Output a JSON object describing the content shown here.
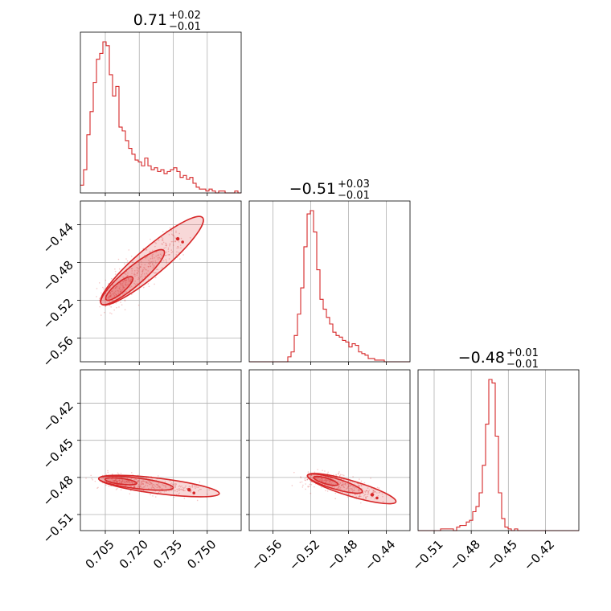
{
  "chart_data": {
    "type": "corner",
    "color": "#d62728",
    "grid": true,
    "params": [
      {
        "key": "p0",
        "range": [
          0.694,
          0.765
        ],
        "ticks": [
          0.705,
          0.72,
          0.735,
          0.75
        ],
        "tick_labels": [
          "0.705",
          "0.720",
          "0.735",
          "0.750"
        ]
      },
      {
        "key": "p1",
        "range": [
          -0.585,
          -0.415
        ],
        "ticks": [
          -0.56,
          -0.52,
          -0.48,
          -0.44
        ],
        "tick_labels": [
          "−0.56",
          "−0.52",
          "−0.48",
          "−0.44"
        ]
      },
      {
        "key": "p2",
        "range": [
          -0.523,
          -0.393
        ],
        "ticks": [
          -0.51,
          -0.48,
          -0.45,
          -0.42
        ],
        "tick_labels": [
          "−0.51",
          "−0.48",
          "−0.45",
          "−0.42"
        ]
      }
    ],
    "titles": [
      {
        "value": "0.71",
        "plus": "+0.02",
        "minus": "−0.01"
      },
      {
        "value": "−0.51",
        "plus": "+0.03",
        "minus": "−0.01"
      },
      {
        "value": "−0.48",
        "plus": "+0.01",
        "minus": "−0.01"
      }
    ],
    "histograms": [
      {
        "param": 0,
        "bin_start": 0.694,
        "bin_width": 0.00142,
        "counts": [
          4,
          12,
          30,
          42,
          57,
          69,
          72,
          78,
          76,
          61,
          50,
          55,
          34,
          32,
          27,
          23,
          20,
          17,
          16,
          14,
          18,
          14,
          12,
          13,
          11,
          12,
          10,
          11,
          12,
          13,
          11,
          8,
          9,
          7,
          8,
          5,
          3,
          2,
          2,
          1,
          2,
          1,
          0,
          1,
          1,
          0,
          0,
          0,
          1,
          0
        ]
      },
      {
        "param": 1,
        "bin_start": -0.585,
        "bin_width": 0.0034,
        "counts": [
          0,
          0,
          0,
          0,
          0,
          0,
          0,
          0,
          0,
          0,
          0,
          0,
          3,
          6,
          16,
          29,
          45,
          70,
          90,
          92,
          79,
          56,
          38,
          32,
          27,
          23,
          18,
          16,
          15,
          13,
          12,
          9,
          11,
          10,
          6,
          5,
          4,
          2,
          2,
          1,
          1,
          1,
          0,
          0,
          0,
          0,
          0,
          0,
          0,
          0
        ]
      },
      {
        "param": 2,
        "bin_start": -0.523,
        "bin_width": 0.0026,
        "counts": [
          0,
          0,
          0,
          0,
          0,
          0,
          0,
          1,
          1,
          1,
          1,
          0,
          2,
          3,
          3,
          5,
          6,
          11,
          14,
          22,
          38,
          62,
          88,
          86,
          55,
          22,
          7,
          2,
          1,
          0,
          1,
          0,
          0,
          0,
          0,
          0,
          0,
          0,
          0,
          0,
          0,
          0,
          0,
          0,
          0,
          0,
          0,
          0,
          0,
          0
        ]
      }
    ],
    "contours": [
      {
        "x": 0,
        "y": 1,
        "center": [
          0.707,
          -0.516
        ],
        "sigma": [
          0.0035,
          0.009
        ],
        "slope": 3.2,
        "tail_to": [
          0.737,
          -0.455
        ]
      },
      {
        "x": 0,
        "y": 2,
        "center": [
          0.707,
          -0.482
        ],
        "sigma": [
          0.0055,
          0.0035
        ],
        "slope": -0.25,
        "tail_to": [
          0.742,
          -0.49
        ]
      },
      {
        "x": 1,
        "y": 2,
        "center": [
          -0.512,
          -0.481
        ],
        "sigma": [
          0.011,
          0.0035
        ],
        "slope": -0.27,
        "tail_to": [
          -0.455,
          -0.494
        ]
      }
    ]
  }
}
